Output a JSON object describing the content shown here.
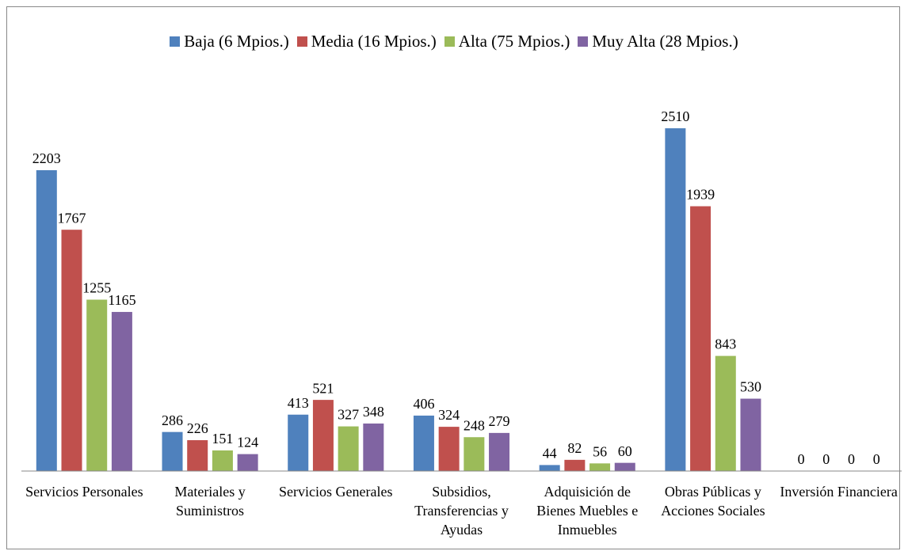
{
  "chart_data": {
    "type": "bar",
    "categories": [
      "Servicios Personales",
      "Materiales y Suministros",
      "Servicios Generales",
      "Subsidios, Transferencias y Ayudas",
      "Adquisición de Bienes Muebles e Inmuebles",
      "Obras Públicas y Acciones Sociales",
      "Inversión Financiera"
    ],
    "series": [
      {
        "name": "Baja (6 Mpios.)",
        "color": "#4f81bd",
        "values": [
          2203,
          286,
          413,
          406,
          44,
          2510,
          0
        ]
      },
      {
        "name": "Media (16 Mpios.)",
        "color": "#c0504d",
        "values": [
          1767,
          226,
          521,
          324,
          82,
          1939,
          0
        ]
      },
      {
        "name": "Alta (75 Mpios.)",
        "color": "#9bbb59",
        "values": [
          1255,
          151,
          327,
          248,
          56,
          843,
          0
        ]
      },
      {
        "name": "Muy Alta (28 Mpios.)",
        "color": "#8064a2",
        "values": [
          1165,
          124,
          348,
          279,
          60,
          530,
          0
        ]
      }
    ],
    "ylim": [
      0,
      2800
    ],
    "legend": "top"
  }
}
